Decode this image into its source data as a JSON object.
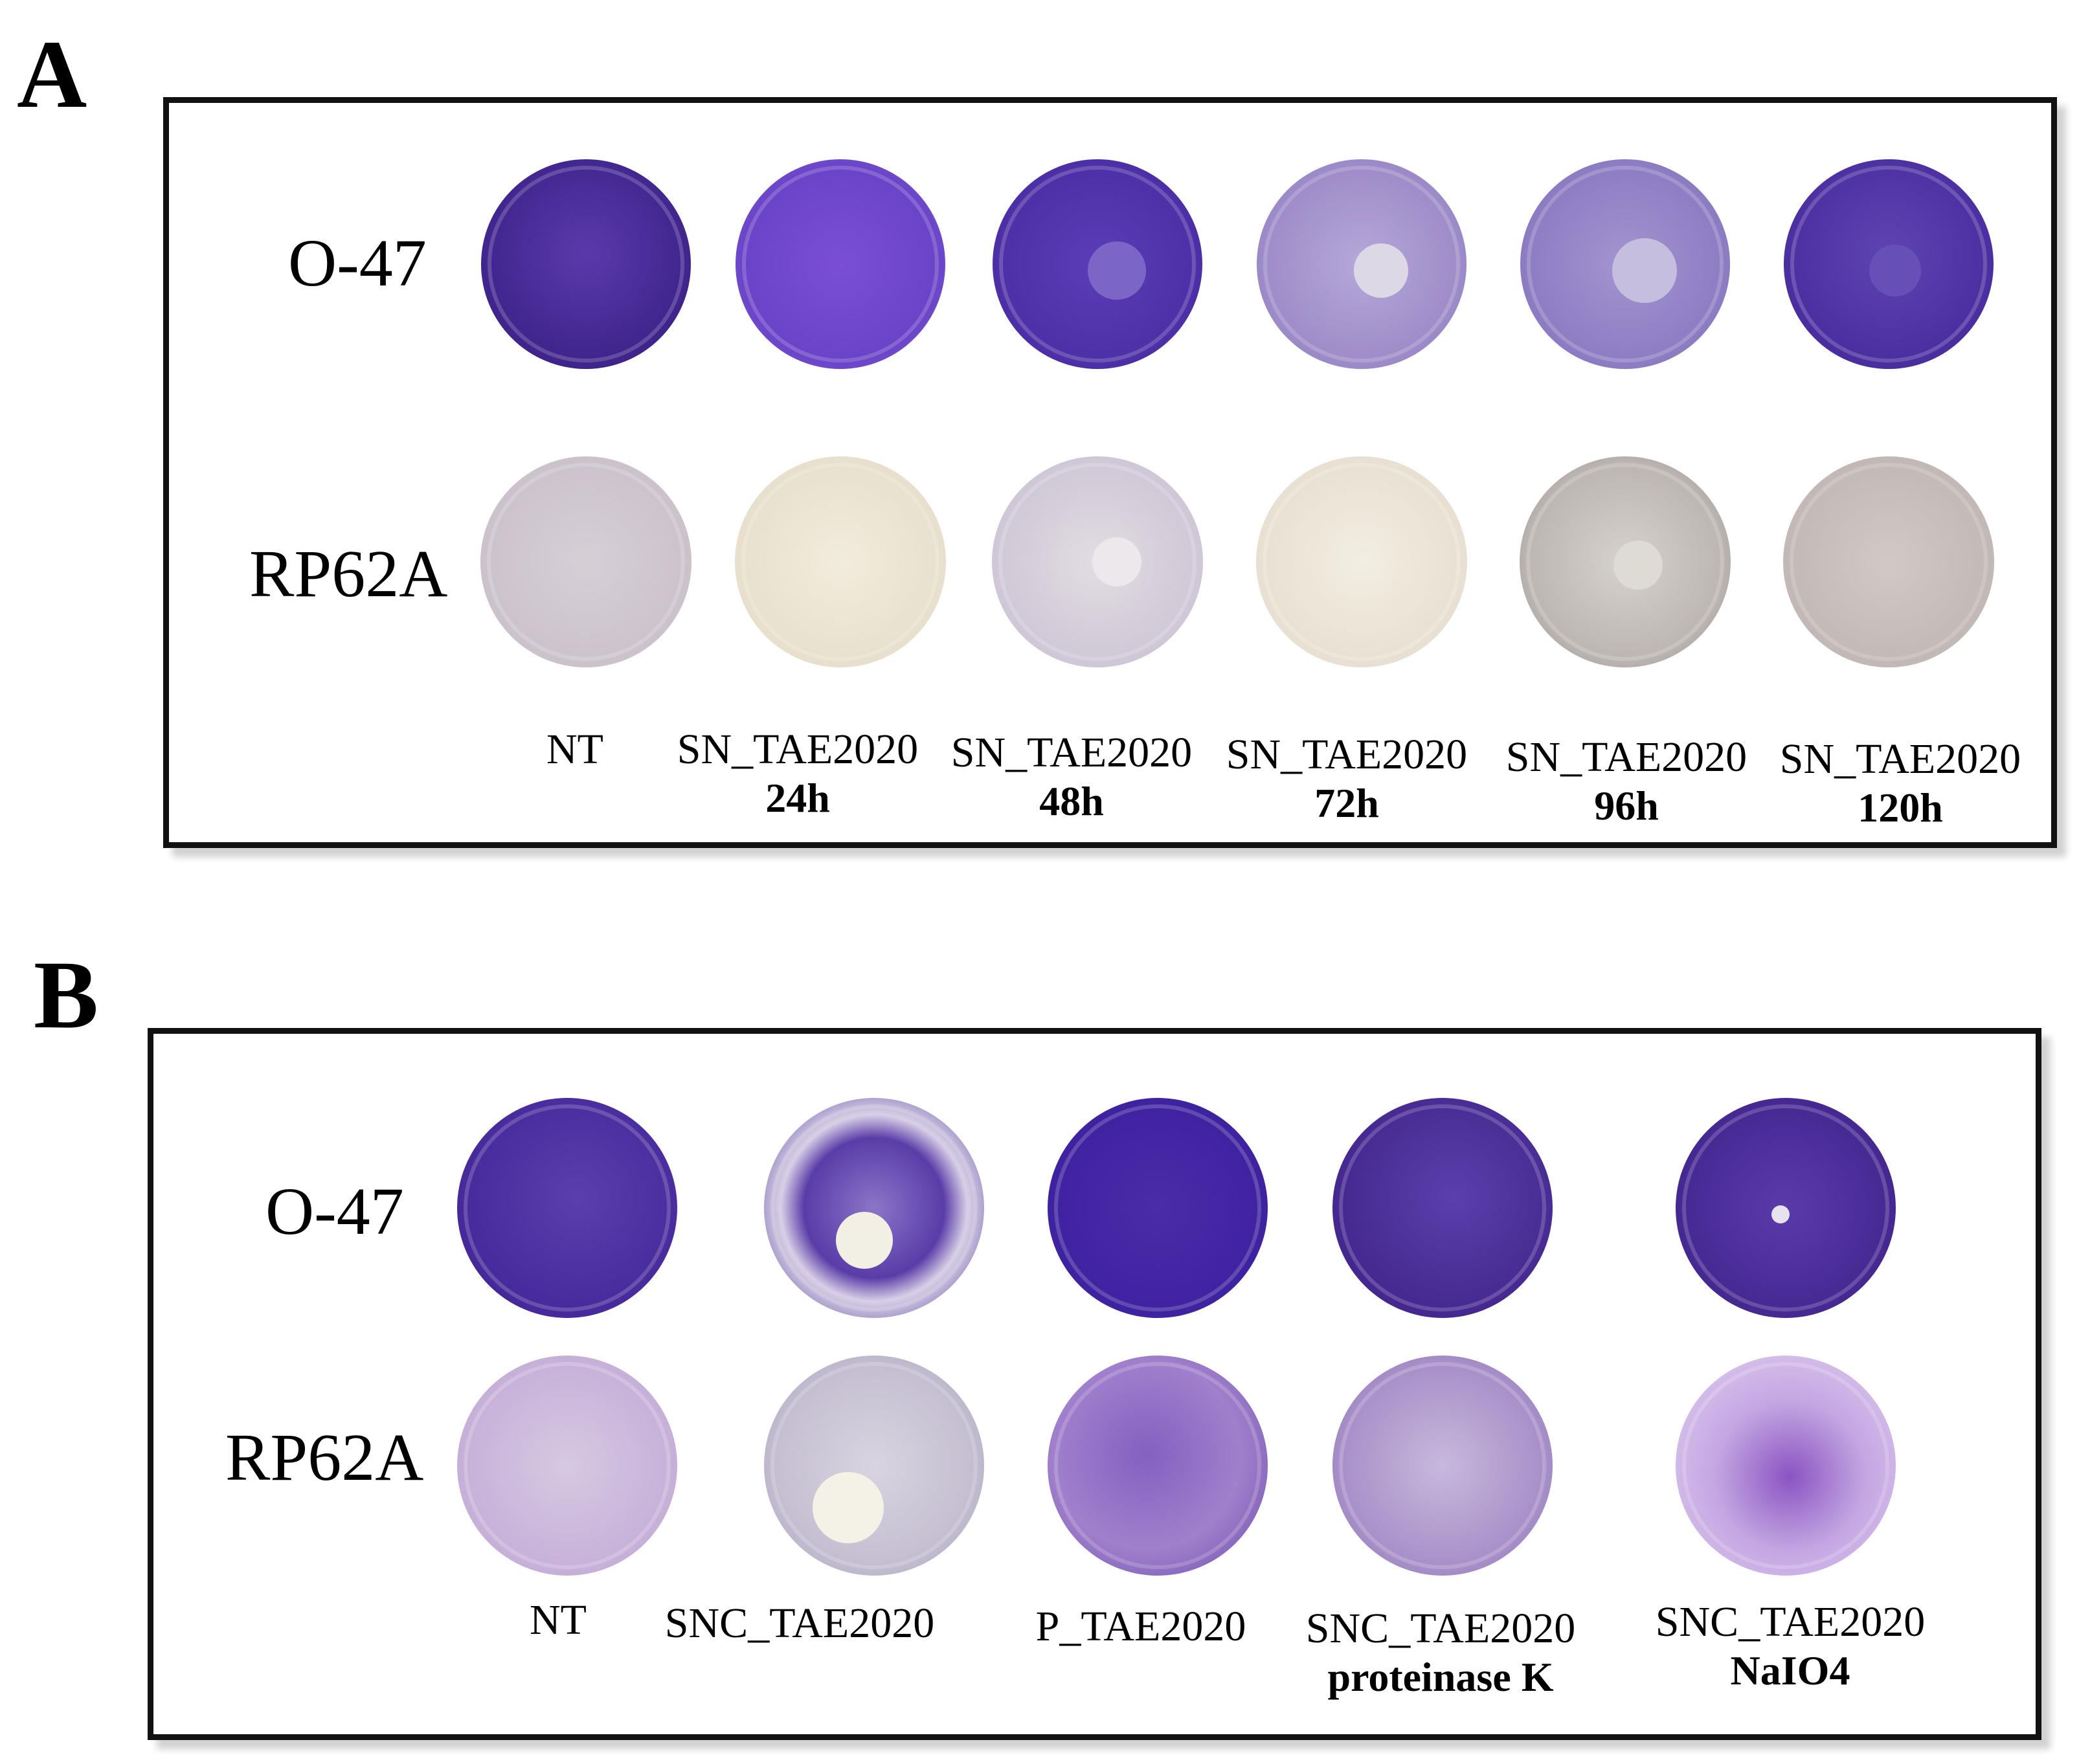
{
  "panel_a": {
    "letter": "A",
    "row_labels": [
      "O-47",
      "RP62A"
    ],
    "columns": [
      {
        "line1": "NT",
        "line2": ""
      },
      {
        "line1": "SN_TAE2020",
        "line2": "24h"
      },
      {
        "line1": "SN_TAE2020",
        "line2": "48h"
      },
      {
        "line1": "SN_TAE2020",
        "line2": "72h"
      },
      {
        "line1": "SN_TAE2020",
        "line2": "96h"
      },
      {
        "line1": "SN_TAE2020",
        "line2": "120h"
      }
    ]
  },
  "panel_b": {
    "letter": "B",
    "row_labels": [
      "O-47",
      "RP62A"
    ],
    "columns": [
      {
        "line1": "NT",
        "line2": ""
      },
      {
        "line1": "SNC_TAE2020",
        "line2": ""
      },
      {
        "line1": "P_TAE2020",
        "line2": ""
      },
      {
        "line1": "SNC_TAE2020",
        "line2": "proteinase K"
      },
      {
        "line1": "SNC_TAE2020",
        "line2": "NaIO4"
      }
    ]
  },
  "colors": {
    "deep_violet": "#4a2a9a",
    "violet": "#6b48c8",
    "pale_violet": "#b9a8d6",
    "pale_grey": "#cfc7d4",
    "cream": "#ece6d8"
  }
}
